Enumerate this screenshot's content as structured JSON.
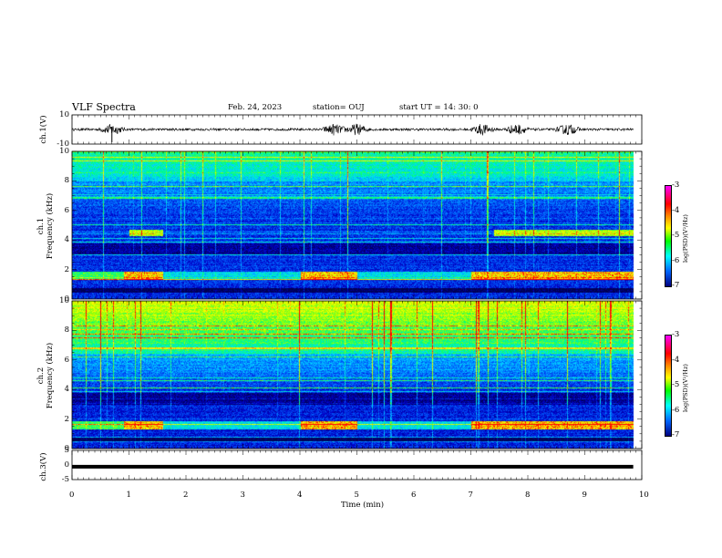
{
  "header": {
    "title": "VLF Spectra",
    "date": "Feb. 24, 2023",
    "station": "station= OUJ",
    "start": "start  UT  =   14: 30: 0"
  },
  "chart_data": [
    {
      "type": "line",
      "panel": "ch1-waveform",
      "ylabel": "ch.1(V)",
      "ylim": [
        -10,
        10
      ],
      "yticks": [
        "10",
        "-10"
      ],
      "bursts_min": [
        0.7,
        4.6,
        5.0,
        7.2,
        7.8,
        8.7
      ]
    },
    {
      "type": "heatmap",
      "panel": "ch1-spectrogram",
      "ylabel": "ch.1\nFrequency  (kHz)",
      "ylim": [
        0,
        10
      ],
      "yticks": [
        "0",
        "2",
        "4",
        "6",
        "8",
        "10"
      ],
      "colorbar": {
        "label": "log(PSD)(V²/Hz)",
        "range": [
          -7,
          -3
        ],
        "ticks": [
          "-3",
          "-4",
          "-5",
          "-6",
          "-7"
        ]
      },
      "bands_khz": [
        [
          1.5,
          1.8
        ],
        [
          4.5,
          4.6
        ],
        [
          3.3,
          3.8
        ],
        [
          0.2,
          0.6
        ]
      ]
    },
    {
      "type": "heatmap",
      "panel": "ch2-spectrogram",
      "ylabel": "ch.2\nFrequency  (kHz)",
      "ylim": [
        0,
        10
      ],
      "yticks": [
        "0",
        "2",
        "4",
        "6",
        "8",
        "10"
      ],
      "colorbar": {
        "label": "log(PSD)(V²/Hz)",
        "range": [
          -7,
          -3
        ],
        "ticks": [
          "-3",
          "-4",
          "-5",
          "-6",
          "-7"
        ]
      }
    },
    {
      "type": "line",
      "panel": "ch3-waveform",
      "ylabel": "ch.3(V)",
      "ylim": [
        -5,
        5
      ],
      "yticks": [
        "5",
        "0",
        "-5"
      ],
      "value_v": -0.6
    }
  ],
  "xaxis": {
    "label": "Time  (min)",
    "range": [
      0,
      10
    ],
    "ticks": [
      "0",
      "1",
      "2",
      "3",
      "4",
      "5",
      "6",
      "7",
      "8",
      "9",
      "10"
    ],
    "data_end_min": 9.85
  }
}
